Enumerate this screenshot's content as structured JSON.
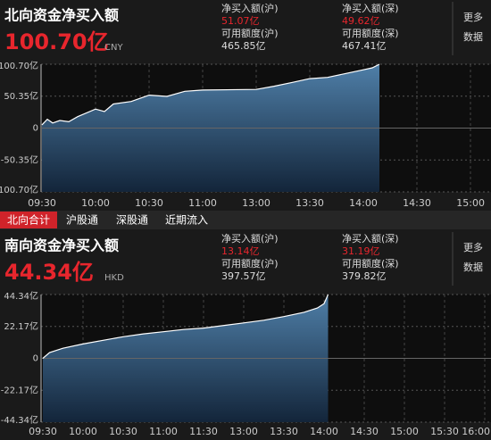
{
  "chart_data": [
    {
      "type": "line",
      "title": "北向资金净买入额",
      "headline": "100.70亿",
      "currency": "CNY",
      "stats": [
        [
          {
            "label": "净买入额(沪)",
            "value": "51.07亿"
          },
          {
            "label": "可用额度(沪)",
            "value": "465.85亿"
          }
        ],
        [
          {
            "label": "净买入额(深)",
            "value": "49.62亿"
          },
          {
            "label": "可用额度(深)",
            "value": "467.41亿"
          }
        ]
      ],
      "more": [
        "更多",
        "数据"
      ],
      "x": [
        "09:30",
        "09:33",
        "09:36",
        "09:40",
        "09:45",
        "09:50",
        "10:00",
        "10:05",
        "10:10",
        "10:20",
        "10:30",
        "10:40",
        "10:50",
        "11:00",
        "13:00",
        "13:10",
        "13:20",
        "13:30",
        "13:40",
        "13:50",
        "14:00",
        "14:05",
        "14:09"
      ],
      "values": [
        5,
        14,
        8,
        12,
        10,
        18,
        30,
        26,
        38,
        42,
        52,
        50,
        58,
        60,
        61,
        66,
        72,
        78,
        80,
        86,
        92,
        95,
        100.7
      ],
      "color": "#ffffff",
      "xlim": [
        "09:30",
        "15:00"
      ],
      "xticks": [
        "09:30",
        "10:00",
        "10:30",
        "11:00",
        "13:00",
        "13:30",
        "14:00",
        "14:30",
        "15:00"
      ],
      "ylim": [
        -100.7,
        100.7
      ],
      "yticks": [
        {
          "value": 100.7,
          "label": "100.70亿"
        },
        {
          "value": 50.35,
          "label": "50.35亿"
        },
        0,
        {
          "value": -50.35,
          "label": "-50.35亿"
        },
        {
          "value": -100.7,
          "label": "-100.70亿"
        }
      ],
      "grid": true
    },
    {
      "type": "line",
      "title": "南向资金净买入额",
      "headline": "44.34亿",
      "currency": "HKD",
      "stats": [
        [
          {
            "label": "净买入额(沪)",
            "value": "13.14亿"
          },
          {
            "label": "可用额度(沪)",
            "value": "397.57亿"
          }
        ],
        [
          {
            "label": "净买入额(深)",
            "value": "31.19亿"
          },
          {
            "label": "可用额度(深)",
            "value": "379.82亿"
          }
        ]
      ],
      "more": [
        "更多",
        "数据"
      ],
      "x": [
        "09:30",
        "09:35",
        "09:45",
        "10:00",
        "10:15",
        "10:30",
        "10:45",
        "11:00",
        "11:15",
        "11:30",
        "13:00",
        "13:15",
        "13:30",
        "13:45",
        "13:55",
        "14:00",
        "14:03"
      ],
      "values": [
        0,
        4,
        7,
        10,
        12.5,
        15,
        17,
        18.5,
        20,
        21,
        24.6,
        26.5,
        29,
        32,
        35,
        38,
        44.34
      ],
      "color": "#ffffff",
      "xlim": [
        "09:30",
        "16:00"
      ],
      "xticks": [
        "09:30",
        "10:00",
        "10:30",
        "11:00",
        "11:30",
        "13:00",
        "13:30",
        "14:00",
        "14:30",
        "15:00",
        "15:30",
        "16:00"
      ],
      "ylim": [
        -44.34,
        44.34
      ],
      "yticks": [
        {
          "value": 44.34,
          "label": "44.34亿"
        },
        {
          "value": 22.17,
          "label": "22.17亿"
        },
        0,
        {
          "value": -22.17,
          "label": "-22.17亿"
        },
        {
          "value": -44.34,
          "label": "-44.34亿"
        }
      ],
      "grid": true
    }
  ],
  "tabs": [
    "北向合计",
    "沪股通",
    "深股通",
    "近期流入"
  ]
}
